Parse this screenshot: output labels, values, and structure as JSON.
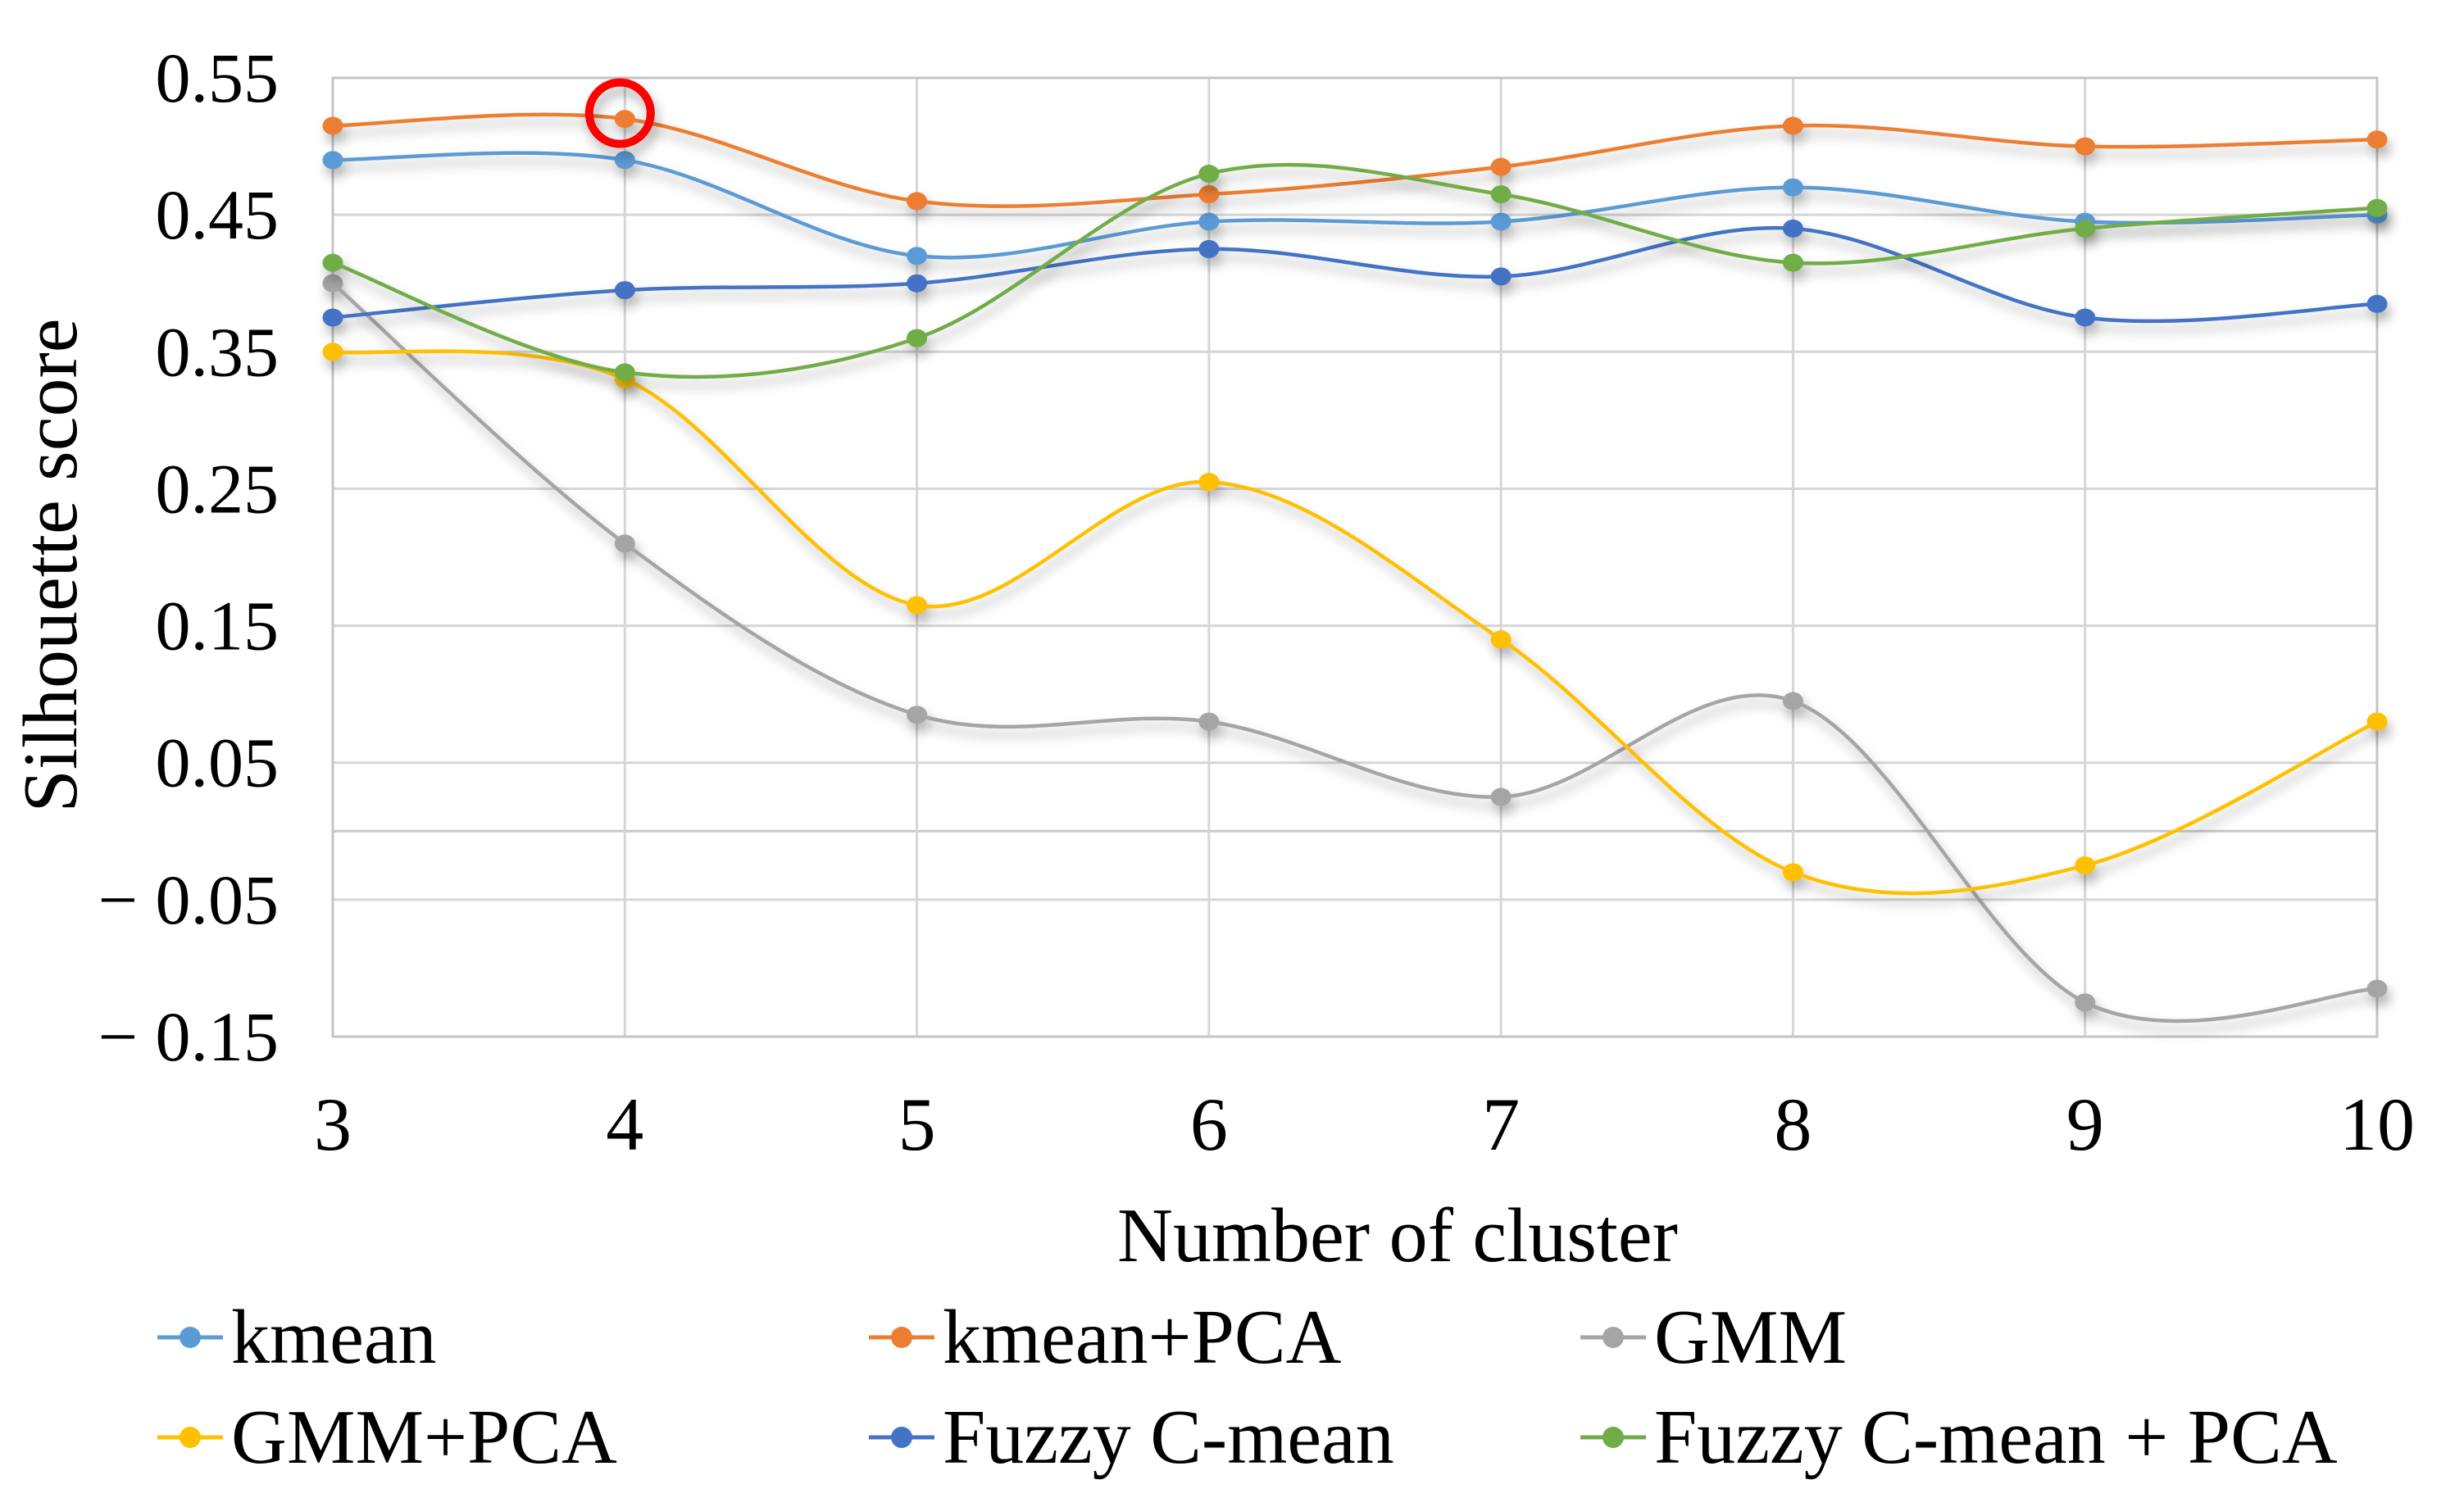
{
  "chart_data": {
    "type": "line",
    "title": "",
    "xlabel": "Number of cluster",
    "ylabel": "Silhouette score",
    "categories": [
      3,
      4,
      5,
      6,
      7,
      8,
      9,
      10
    ],
    "x_tick_labels": [
      "3",
      "4",
      "5",
      "6",
      "7",
      "8",
      "9",
      "10"
    ],
    "y_ticks": [
      0.55,
      0.45,
      0.35,
      0.25,
      0.15,
      0.05,
      -0.05,
      -0.15
    ],
    "y_tick_labels": [
      "0.55",
      "0.45",
      "0.35",
      "0.25",
      "0.15",
      "0.05",
      "− 0.05",
      "− 0.15"
    ],
    "ylim": [
      -0.15,
      0.55
    ],
    "grid": "horizontal gridlines every 0.1 plus vertical gridline at each category, light gray, full plot border, zero axis line",
    "smooth_lines": true,
    "legend_position": "bottom, 2 rows x 3 columns",
    "series": [
      {
        "name": "kmean",
        "color": "#5B9BD5",
        "values": [
          0.49,
          0.49,
          0.42,
          0.445,
          0.445,
          0.47,
          0.445,
          0.45
        ]
      },
      {
        "name": "kmean+PCA",
        "color": "#ED7D31",
        "values": [
          0.515,
          0.52,
          0.46,
          0.465,
          0.485,
          0.515,
          0.5,
          0.505
        ]
      },
      {
        "name": "GMM",
        "color": "#A5A5A5",
        "values": [
          0.4,
          0.21,
          0.085,
          0.08,
          0.025,
          0.095,
          -0.125,
          -0.115
        ]
      },
      {
        "name": "GMM+PCA",
        "color": "#FFC000",
        "values": [
          0.35,
          0.33,
          0.165,
          0.255,
          0.14,
          -0.03,
          -0.025,
          0.08
        ]
      },
      {
        "name": "Fuzzy C-mean",
        "color": "#4472C4",
        "values": [
          0.375,
          0.395,
          0.4,
          0.425,
          0.405,
          0.44,
          0.375,
          0.385
        ]
      },
      {
        "name": "Fuzzy C-mean + PCA",
        "color": "#70AD47",
        "values": [
          0.415,
          0.335,
          0.36,
          0.48,
          0.465,
          0.415,
          0.44,
          0.455
        ]
      }
    ],
    "annotation": {
      "type": "circle-highlight",
      "color": "#FF0000",
      "series": "kmean+PCA",
      "category": 4,
      "note": "red circle highlighting the kmean+PCA point at 4 clusters"
    }
  }
}
